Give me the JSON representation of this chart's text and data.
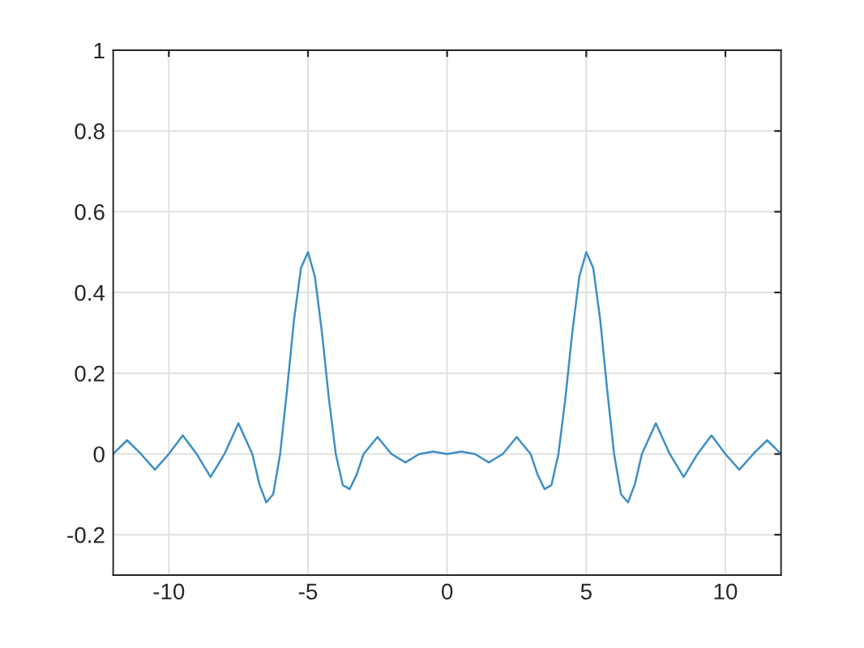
{
  "chart_data": {
    "type": "line",
    "x": [
      -12,
      -11.5,
      -11,
      -10.5,
      -10,
      -9.5,
      -9,
      -8.5,
      -8,
      -7.5,
      -7,
      -6.75,
      -6.5,
      -6.25,
      -6,
      -5.75,
      -5.5,
      -5.25,
      -5,
      -4.75,
      -4.5,
      -4.25,
      -4,
      -3.75,
      -3.5,
      -3.25,
      -3,
      -2.5,
      -2,
      -1.5,
      -1,
      -0.5,
      0,
      0.5,
      1,
      1.5,
      2,
      2.5,
      3,
      3.25,
      3.5,
      3.75,
      4,
      4.25,
      4.5,
      4.75,
      5,
      5.25,
      5.5,
      5.75,
      6,
      6.25,
      6.5,
      6.75,
      7,
      7.5,
      8,
      8.5,
      9,
      9.5,
      10,
      10.5,
      11,
      11.5,
      12
    ],
    "series": [
      {
        "color": "#3d8fc6",
        "values": [
          0,
          0.034,
          0,
          -0.039,
          0,
          0.046,
          0,
          -0.057,
          0,
          0.076,
          0,
          -0.074,
          -0.12,
          -0.1,
          0,
          0.16,
          0.333,
          0.461,
          0.5,
          0.439,
          0.302,
          0.138,
          0,
          -0.077,
          -0.087,
          -0.051,
          0,
          0.042,
          0,
          -0.021,
          0,
          0.006,
          0,
          0.006,
          0,
          -0.021,
          0,
          0.042,
          0,
          -0.051,
          -0.087,
          -0.077,
          0,
          0.138,
          0.302,
          0.439,
          0.5,
          0.461,
          0.333,
          0.16,
          0,
          -0.1,
          -0.12,
          -0.074,
          0,
          0.076,
          0,
          -0.057,
          0,
          0.046,
          0,
          -0.039,
          0,
          0.034,
          0
        ]
      }
    ],
    "xlim": [
      -12,
      12
    ],
    "ylim": [
      -0.3,
      1
    ],
    "xticks": [
      -10,
      -5,
      0,
      5,
      10
    ],
    "yticks": [
      {
        "value": -0.2,
        "label": "-0.2"
      },
      0,
      0.2,
      0.4,
      0.6,
      0.8,
      1
    ],
    "grid": true,
    "line_style": "solid",
    "marker": "none"
  }
}
